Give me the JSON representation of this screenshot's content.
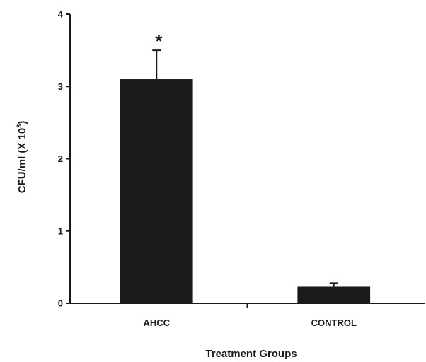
{
  "chart_data": {
    "type": "bar",
    "categories": [
      "AHCC",
      "CONTROL"
    ],
    "values": [
      3.1,
      0.23
    ],
    "errors": [
      0.4,
      0.05
    ],
    "annotations": [
      "*",
      ""
    ],
    "xlabel": "Treatment Groups",
    "ylabel": {
      "prefix": "CFU/ml (X 10",
      "superscript": "3",
      "suffix": ")"
    },
    "ylim": [
      0,
      4
    ],
    "yticks": [
      "0",
      "1",
      "2",
      "3",
      "4"
    ],
    "grid": false,
    "bar_color": "#1a1a1a",
    "axis_color": "#1a1a1a"
  }
}
